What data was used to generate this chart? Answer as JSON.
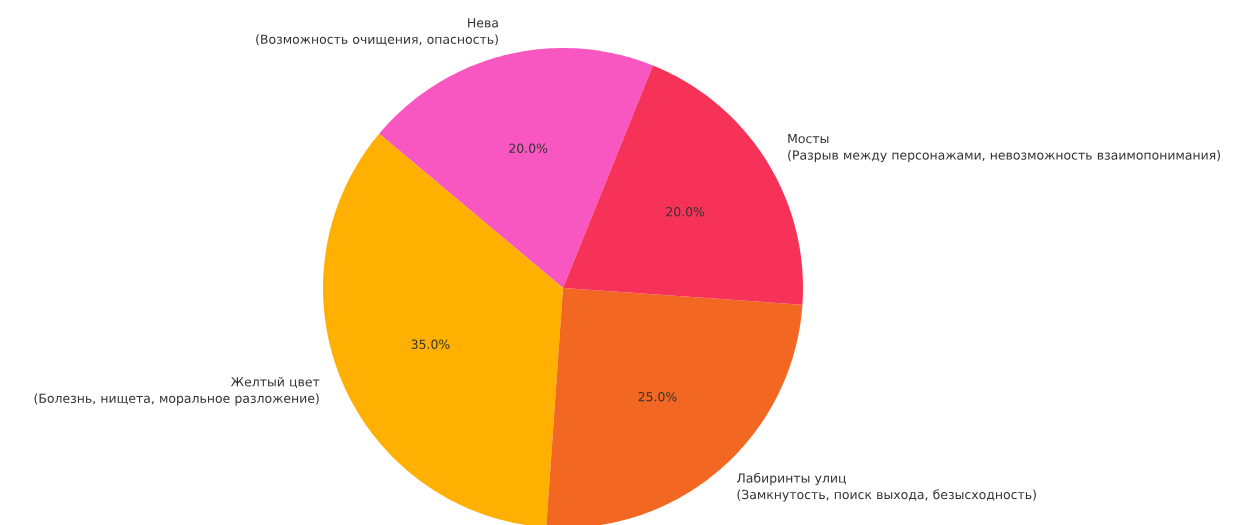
{
  "chart_data": {
    "type": "pie",
    "categories": [
      "Нева\n(Возможность очищения, опасность)",
      "Желтый цвет\n(Болезнь, нищета, моральное разложение)",
      "Лабиринты улиц\n(Замкнутость, поиск выхода, безысходность)",
      "Мосты\n(Разрыв между персонажами, невозможность взаимопонимания)"
    ],
    "values": [
      20,
      35,
      25,
      20
    ],
    "colors": [
      "#f857c1",
      "#ffb000",
      "#f26822",
      "#f73258"
    ],
    "value_labels": [
      "20.0%",
      "35.0%",
      "25.0%",
      "20.0%"
    ]
  }
}
